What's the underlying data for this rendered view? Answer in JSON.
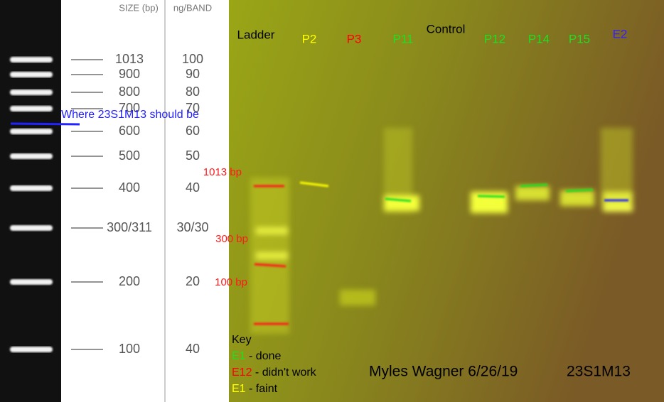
{
  "reference": {
    "header_size": "SIZE (bp)",
    "header_ng": "ng/BAND",
    "rows": [
      {
        "size": "1013",
        "ng": "100"
      },
      {
        "size": "900",
        "ng": "90"
      },
      {
        "size": "800",
        "ng": "80"
      },
      {
        "size": "700",
        "ng": "70"
      },
      {
        "size": "600",
        "ng": "60"
      },
      {
        "size": "500",
        "ng": "50"
      },
      {
        "size": "400",
        "ng": "40"
      },
      {
        "size": "300/311",
        "ng": "30/30"
      },
      {
        "size": "200",
        "ng": "20"
      },
      {
        "size": "100",
        "ng": "40"
      }
    ],
    "note": "Where 23S1M13 should be"
  },
  "gel": {
    "lanes": [
      {
        "label": "Ladder",
        "color": "#000000"
      },
      {
        "label": "P2",
        "color": "#ffff00"
      },
      {
        "label": "P3",
        "color": "#ff0000"
      },
      {
        "label": "P11",
        "color": "#22dd22"
      },
      {
        "label": "Control",
        "color": "#000000"
      },
      {
        "label": "P12",
        "color": "#22dd22"
      },
      {
        "label": "P14",
        "color": "#22dd22"
      },
      {
        "label": "P15",
        "color": "#22dd22"
      },
      {
        "label": "E2",
        "color": "#3322ff"
      }
    ],
    "markers": [
      "1013 bp",
      "300 bp",
      "100 bp"
    ],
    "key": {
      "title": "Key",
      "items": [
        {
          "code": "E1",
          "text": " - done",
          "color": "#22dd22"
        },
        {
          "code": "E12",
          "text": " - didn't work",
          "color": "#ff0000"
        },
        {
          "code": "E1",
          "text": " - faint",
          "color": "#ffff00"
        }
      ]
    },
    "author": "Myles Wagner 6/26/19",
    "sample": "23S1M13"
  }
}
